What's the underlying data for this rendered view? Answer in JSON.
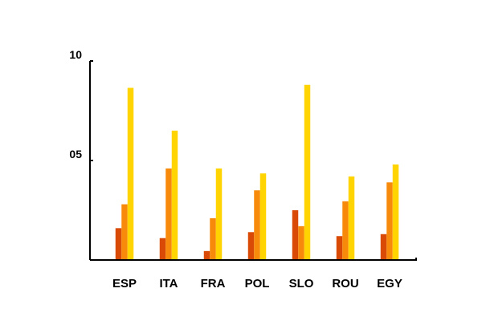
{
  "chart_data": {
    "type": "bar",
    "title": "",
    "xlabel": "",
    "ylabel": "",
    "ylim": [
      0,
      10
    ],
    "yticks": [
      {
        "value": 5,
        "label": "05"
      },
      {
        "value": 10,
        "label": "10"
      }
    ],
    "grid": false,
    "categories": [
      "ESP",
      "ITA",
      "FRA",
      "POL",
      "SLO",
      "ROU",
      "EGY"
    ],
    "series": [
      {
        "values": [
          1.6,
          1.1,
          0.45,
          1.4,
          2.5,
          1.2,
          1.3
        ],
        "color": "#D94A06"
      },
      {
        "values": [
          2.8,
          4.6,
          2.1,
          3.5,
          1.7,
          2.95,
          3.9
        ],
        "color": "#F78A0A"
      },
      {
        "values": [
          8.65,
          6.5,
          4.6,
          4.35,
          8.8,
          4.2,
          4.8
        ],
        "color": "#FFD400"
      }
    ]
  }
}
